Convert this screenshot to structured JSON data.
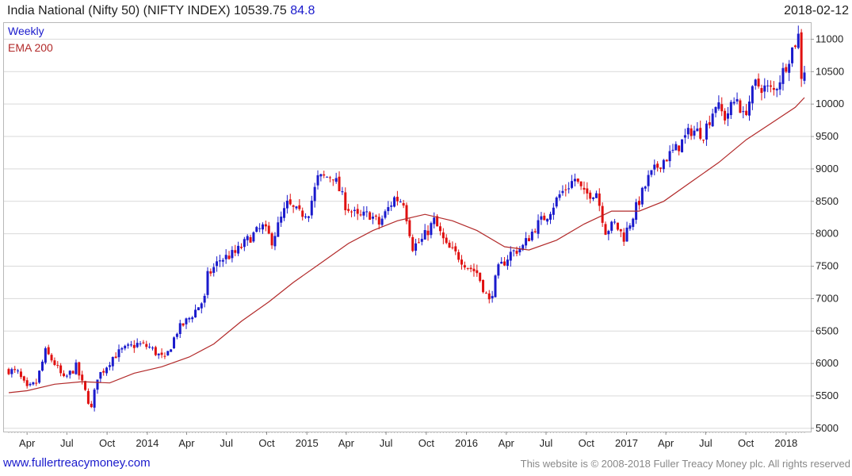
{
  "header": {
    "title": "India National (Nifty 50) (NIFTY INDEX) 10539.75",
    "change": "84.8",
    "date": "2018-02-12"
  },
  "legend": {
    "weekly": "Weekly",
    "ema": "EMA 200"
  },
  "footer": {
    "website": "www.fullertreacymoney.com",
    "copyright": "This website is © 2008-2018 Fuller Treacy Money plc. All rights reserved"
  },
  "colors": {
    "up": "#1a1acc",
    "down": "#e01010",
    "ema": "#b22a2a",
    "grid": "#d9d9d9"
  },
  "chart_data": {
    "type": "line",
    "series_style": "candlestick",
    "frequency": "weekly",
    "x_start": "2013-02-18",
    "x_end": "2018-02-12",
    "ylim": [
      4950,
      11250
    ],
    "y_ticks": [
      5000,
      5500,
      6000,
      6500,
      7000,
      7500,
      8000,
      8500,
      9000,
      9500,
      10000,
      10500,
      11000
    ],
    "x_ticks": [
      {
        "label": "Apr",
        "date": "2013-04-01"
      },
      {
        "label": "Jul",
        "date": "2013-07-01"
      },
      {
        "label": "Oct",
        "date": "2013-10-01"
      },
      {
        "label": "2014",
        "date": "2014-01-01"
      },
      {
        "label": "Apr",
        "date": "2014-04-01"
      },
      {
        "label": "Jul",
        "date": "2014-07-01"
      },
      {
        "label": "Oct",
        "date": "2014-10-01"
      },
      {
        "label": "2015",
        "date": "2015-01-01"
      },
      {
        "label": "Apr",
        "date": "2015-04-01"
      },
      {
        "label": "Jul",
        "date": "2015-07-01"
      },
      {
        "label": "Oct",
        "date": "2015-10-01"
      },
      {
        "label": "2016",
        "date": "2016-01-01"
      },
      {
        "label": "Apr",
        "date": "2016-04-01"
      },
      {
        "label": "Jul",
        "date": "2016-07-01"
      },
      {
        "label": "Oct",
        "date": "2016-10-01"
      },
      {
        "label": "2017",
        "date": "2017-01-01"
      },
      {
        "label": "Apr",
        "date": "2017-04-01"
      },
      {
        "label": "Jul",
        "date": "2017-07-01"
      },
      {
        "label": "Oct",
        "date": "2017-10-01"
      },
      {
        "label": "2018",
        "date": "2018-01-01"
      }
    ],
    "close_path": [
      [
        "2013-02-18",
        5900
      ],
      [
        "2013-03-11",
        5850
      ],
      [
        "2013-04-01",
        5600
      ],
      [
        "2013-04-22",
        5700
      ],
      [
        "2013-05-13",
        6180
      ],
      [
        "2013-06-03",
        6000
      ],
      [
        "2013-06-24",
        5750
      ],
      [
        "2013-07-22",
        5950
      ],
      [
        "2013-08-26",
        5300
      ],
      [
        "2013-09-09",
        5800
      ],
      [
        "2013-09-23",
        5900
      ],
      [
        "2013-10-14",
        6100
      ],
      [
        "2013-11-04",
        6200
      ],
      [
        "2013-12-09",
        6300
      ],
      [
        "2014-01-06",
        6250
      ],
      [
        "2014-02-10",
        6050
      ],
      [
        "2014-03-10",
        6500
      ],
      [
        "2014-04-07",
        6700
      ],
      [
        "2014-05-12",
        7000
      ],
      [
        "2014-05-19",
        7350
      ],
      [
        "2014-06-16",
        7600
      ],
      [
        "2014-07-21",
        7700
      ],
      [
        "2014-08-25",
        7950
      ],
      [
        "2014-09-22",
        8100
      ],
      [
        "2014-10-13",
        7900
      ],
      [
        "2014-11-17",
        8450
      ],
      [
        "2014-12-15",
        8300
      ],
      [
        "2015-01-05",
        8350
      ],
      [
        "2015-01-26",
        8850
      ],
      [
        "2015-03-02",
        8900
      ],
      [
        "2015-03-30",
        8450
      ],
      [
        "2015-04-27",
        8250
      ],
      [
        "2015-05-25",
        8300
      ],
      [
        "2015-06-15",
        8150
      ],
      [
        "2015-07-20",
        8550
      ],
      [
        "2015-08-10",
        8500
      ],
      [
        "2015-08-31",
        7800
      ],
      [
        "2015-09-21",
        7900
      ],
      [
        "2015-10-19",
        8200
      ],
      [
        "2015-11-16",
        7800
      ],
      [
        "2015-12-14",
        7650
      ],
      [
        "2016-01-04",
        7500
      ],
      [
        "2016-01-25",
        7400
      ],
      [
        "2016-02-22",
        6950
      ],
      [
        "2016-03-14",
        7450
      ],
      [
        "2016-04-11",
        7700
      ],
      [
        "2016-05-09",
        7800
      ],
      [
        "2016-06-06",
        8100
      ],
      [
        "2016-07-04",
        8300
      ],
      [
        "2016-08-01",
        8600
      ],
      [
        "2016-09-05",
        8850
      ],
      [
        "2016-09-26",
        8600
      ],
      [
        "2016-10-24",
        8650
      ],
      [
        "2016-11-14",
        8050
      ],
      [
        "2016-12-05",
        8150
      ],
      [
        "2016-12-26",
        7950
      ],
      [
        "2017-01-23",
        8400
      ],
      [
        "2017-02-20",
        8850
      ],
      [
        "2017-03-20",
        9100
      ],
      [
        "2017-04-24",
        9300
      ],
      [
        "2017-05-29",
        9600
      ],
      [
        "2017-06-26",
        9550
      ],
      [
        "2017-07-24",
        10000
      ],
      [
        "2017-08-14",
        9800
      ],
      [
        "2017-09-11",
        10100
      ],
      [
        "2017-09-25",
        9800
      ],
      [
        "2017-10-23",
        10300
      ],
      [
        "2017-11-13",
        10250
      ],
      [
        "2017-12-04",
        10200
      ],
      [
        "2017-12-25",
        10500
      ],
      [
        "2018-01-15",
        10850
      ],
      [
        "2018-01-29",
        11050
      ],
      [
        "2018-02-05",
        10450
      ],
      [
        "2018-02-12",
        10539.75
      ]
    ],
    "ema_path": [
      [
        "2013-02-18",
        5550
      ],
      [
        "2013-04-01",
        5580
      ],
      [
        "2013-06-03",
        5680
      ],
      [
        "2013-08-05",
        5720
      ],
      [
        "2013-10-07",
        5700
      ],
      [
        "2013-12-02",
        5850
      ],
      [
        "2014-02-03",
        5950
      ],
      [
        "2014-04-07",
        6100
      ],
      [
        "2014-06-02",
        6300
      ],
      [
        "2014-08-04",
        6650
      ],
      [
        "2014-10-06",
        6950
      ],
      [
        "2014-12-01",
        7250
      ],
      [
        "2015-02-02",
        7550
      ],
      [
        "2015-04-06",
        7850
      ],
      [
        "2015-06-01",
        8050
      ],
      [
        "2015-07-27",
        8200
      ],
      [
        "2015-09-28",
        8300
      ],
      [
        "2015-11-30",
        8200
      ],
      [
        "2016-01-25",
        8050
      ],
      [
        "2016-03-28",
        7800
      ],
      [
        "2016-05-23",
        7750
      ],
      [
        "2016-07-25",
        7900
      ],
      [
        "2016-09-26",
        8150
      ],
      [
        "2016-11-28",
        8350
      ],
      [
        "2017-01-30",
        8350
      ],
      [
        "2017-03-27",
        8500
      ],
      [
        "2017-05-29",
        8800
      ],
      [
        "2017-07-31",
        9100
      ],
      [
        "2017-10-02",
        9450
      ],
      [
        "2017-11-27",
        9700
      ],
      [
        "2018-01-22",
        9950
      ],
      [
        "2018-02-12",
        10100
      ]
    ]
  }
}
